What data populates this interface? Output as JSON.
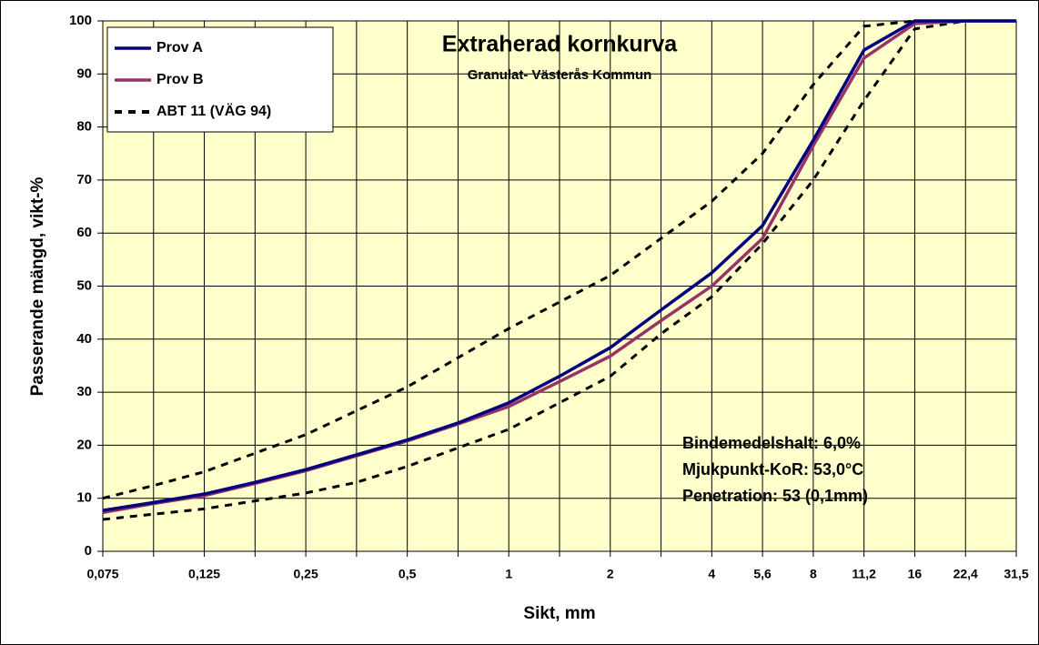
{
  "chart_data": {
    "type": "line",
    "title": "Extraherad kornkurva",
    "subtitle": "Granulat- Västerås Kommun",
    "x_label": "Sikt, mm",
    "y_label": "Passerande mängd, vikt-%",
    "categories": [
      "0,075",
      null,
      "0,125",
      null,
      "0,25",
      null,
      "0,5",
      null,
      "1",
      null,
      "2",
      null,
      "4",
      "5,6",
      "8",
      "11,2",
      "16",
      "22,4",
      "31,5"
    ],
    "series": [
      {
        "name": "Prov A",
        "color": "#000080",
        "values": [
          7.7,
          9.2,
          10.8,
          13,
          15.4,
          18.2,
          21,
          24.2,
          28,
          33,
          38.4,
          45.5,
          52.5,
          61.4,
          77.5,
          94.5,
          100,
          100,
          100
        ]
      },
      {
        "name": "Prov B",
        "color": "#993366",
        "values": [
          7.3,
          9,
          10.5,
          12.8,
          15.2,
          18,
          20.8,
          24,
          27.3,
          32,
          36.8,
          43.5,
          50,
          59,
          76.5,
          93,
          99.5,
          100,
          100
        ]
      },
      {
        "name": "ABT 11 (VÄG 94)",
        "color": "#000000",
        "dashed": true,
        "values": [
          10,
          12.4,
          15,
          18.5,
          22,
          26.5,
          31,
          36.5,
          42,
          47,
          52,
          59,
          66,
          75,
          88,
          99,
          100,
          100,
          100
        ],
        "lower": [
          6,
          7,
          8,
          9.5,
          11,
          13,
          16,
          19.5,
          23,
          28,
          33,
          41,
          48,
          58,
          70,
          85,
          98.5,
          100,
          100
        ]
      }
    ],
    "annotations": [
      "Bindemedelshalt: 6,0%",
      "Mjukpunkt-KoR: 53,0°C",
      "Penetration: 53 (0,1mm)"
    ],
    "ylim": [
      0,
      100
    ],
    "yticks": [
      0,
      10,
      20,
      30,
      40,
      50,
      60,
      70,
      80,
      90,
      100
    ],
    "grid": true,
    "legend": "upper left",
    "plot_background": "#ffffcc"
  }
}
